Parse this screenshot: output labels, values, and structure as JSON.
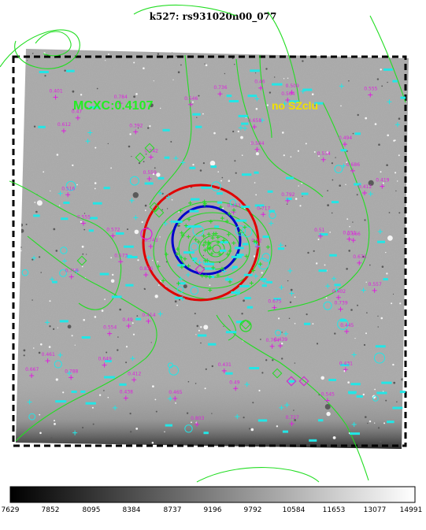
{
  "title": "k527: rs931020n00_077",
  "annotations": {
    "cluster_label": "MCXC:0.4107",
    "sz_label": "no SZclu"
  },
  "colorbar": {
    "ticks": [
      "7629",
      "7852",
      "8095",
      "8384",
      "8737",
      "9196",
      "9792",
      "10584",
      "11653",
      "13077",
      "14991"
    ]
  },
  "colors": {
    "sky_bg": "#a9a9a9",
    "contour": "#22dd22",
    "magenta_label": "#dd22dd",
    "cyan_marks": "#22e6e6",
    "red_circle": "#e00000",
    "blue_circle": "#0000cc",
    "sz_text": "#f0e000"
  },
  "redshift_labels": [
    "0.784",
    "0.764",
    "0.414",
    "0.412",
    "0.717",
    "0.736",
    "0.667",
    "0.676",
    "0.49",
    "0.62",
    "0.423",
    "0.412",
    "0.675",
    "0.803",
    "0.445",
    "0.836",
    "0.431",
    "0.546",
    "0.419",
    "0.555",
    "0.564",
    "0.792",
    "0.666",
    "0.49",
    "0.431",
    "0.557",
    "0.658",
    "0.402",
    "0.465",
    "0.461",
    "0.559",
    "0.516",
    "0.51",
    "0.584",
    "0.494",
    "0.392",
    "0.401",
    "0.545",
    "0.686",
    "0.47",
    "0.509",
    "0.542",
    "0.555",
    "0.554",
    "0.739",
    "0.649",
    "0.769",
    "0.788",
    "0.46",
    "0.438",
    "0.439",
    "0.534",
    "0.572",
    "0.727",
    "0.573",
    "0.743",
    "0.551",
    "0.612"
  ]
}
